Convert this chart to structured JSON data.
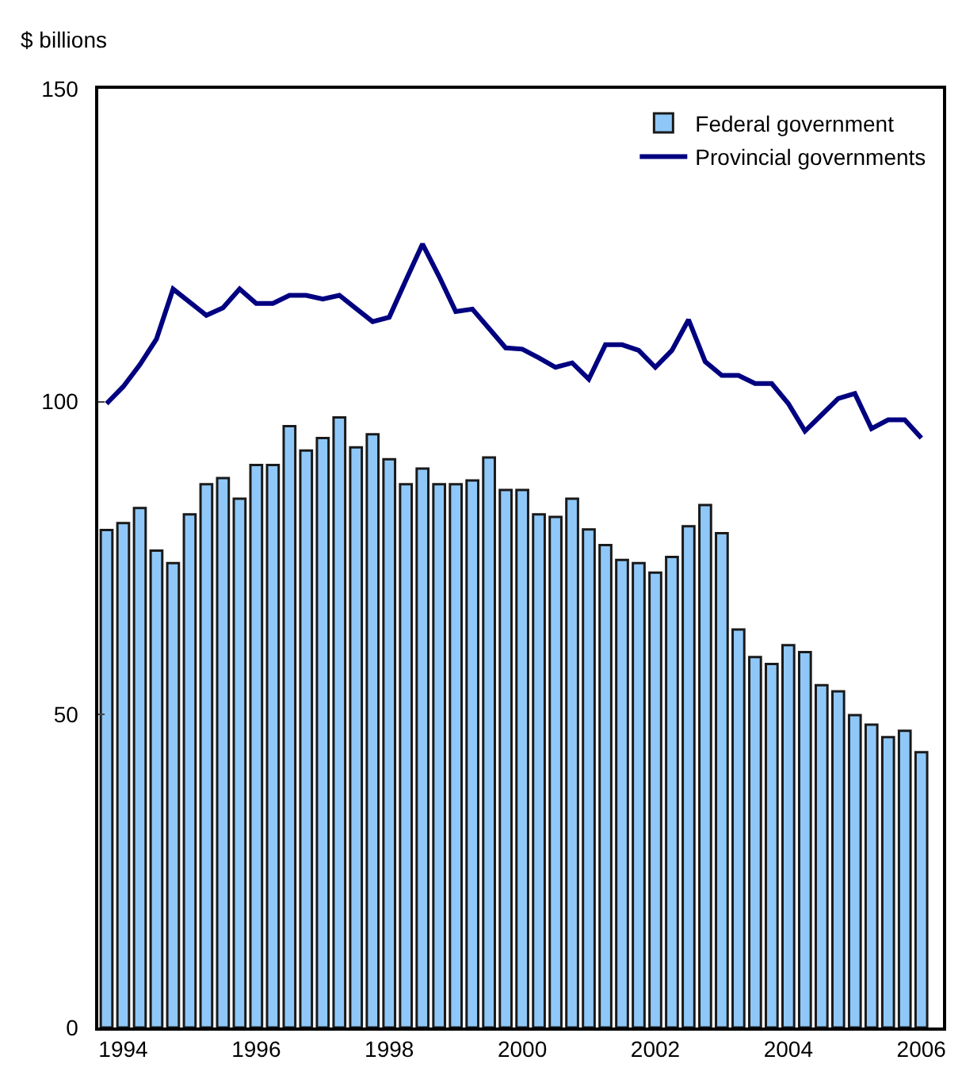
{
  "chart_data": {
    "type": "bar",
    "ylabel": "$ billions",
    "categories": [
      null,
      "1994",
      null,
      null,
      null,
      null,
      null,
      null,
      null,
      "1996",
      null,
      null,
      null,
      null,
      null,
      null,
      null,
      "1998",
      null,
      null,
      null,
      null,
      null,
      null,
      null,
      "2000",
      null,
      null,
      null,
      null,
      null,
      null,
      null,
      "2002",
      null,
      null,
      null,
      null,
      null,
      null,
      null,
      "2004",
      null,
      null,
      null,
      null,
      null,
      null,
      null,
      "2006"
    ],
    "series": [
      {
        "name": "Federal government",
        "color": "#8fc8f8",
        "values": [
          79.5,
          80.6,
          83.0,
          76.2,
          74.2,
          82.0,
          86.8,
          87.8,
          84.5,
          89.9,
          89.9,
          96.1,
          92.2,
          94.2,
          97.5,
          92.7,
          94.8,
          90.8,
          86.8,
          89.3,
          86.8,
          86.8,
          87.4,
          91.1,
          85.9,
          85.9,
          82.0,
          81.6,
          84.5,
          79.6,
          77.1,
          74.7,
          74.2,
          72.7,
          75.2,
          80.1,
          83.5,
          79.0,
          63.6,
          59.2,
          58.1,
          61.1,
          60.0,
          54.7,
          53.7,
          49.9,
          48.4,
          46.4,
          47.4,
          44.0
        ]
      },
      {
        "name": "Provincial governments",
        "type": "line",
        "color": "#000080",
        "values": [
          99.7,
          102.4,
          105.9,
          110.0,
          118.0,
          115.9,
          113.8,
          115.0,
          118.0,
          115.7,
          115.7,
          117.0,
          117.0,
          116.4,
          117.0,
          114.9,
          112.8,
          113.5,
          119.4,
          125.2,
          120.0,
          114.4,
          114.8,
          111.7,
          108.6,
          108.4,
          107.0,
          105.5,
          106.2,
          103.6,
          109.1,
          109.1,
          108.2,
          105.5,
          108.2,
          113.1,
          106.4,
          104.2,
          104.2,
          102.9,
          102.9,
          99.7,
          95.3,
          97.9,
          100.5,
          101.3,
          95.7,
          97.1,
          97.1,
          94.2
        ]
      }
    ],
    "ylim": [
      0,
      150
    ],
    "yticks": [
      0,
      50,
      100,
      150
    ],
    "grid": false,
    "legend": "top right",
    "marker": "none",
    "line_style": "solid"
  }
}
